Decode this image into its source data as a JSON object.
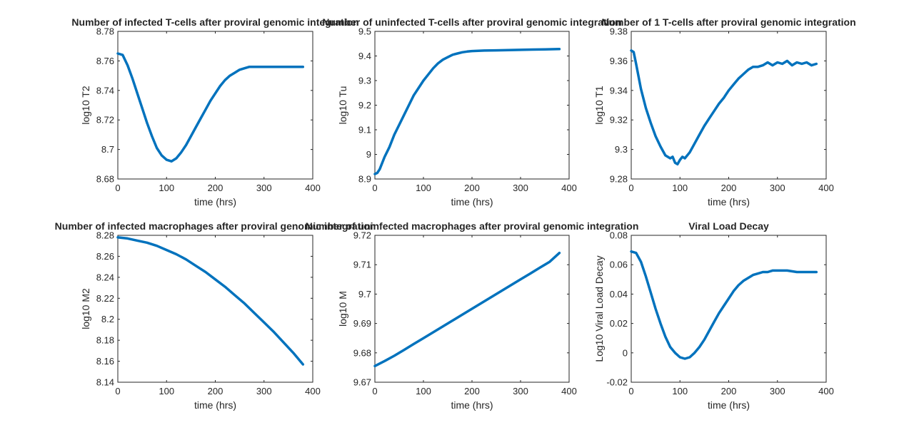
{
  "chart_data": [
    {
      "type": "line",
      "title": "Number of infected T-cells after proviral genomic integration",
      "xlabel": "time (hrs)",
      "ylabel": "log10 T2",
      "xlim": [
        0,
        400
      ],
      "ylim": [
        8.68,
        8.78
      ],
      "xticks": [
        0,
        100,
        200,
        300,
        400
      ],
      "yticks": [
        8.68,
        8.7,
        8.72,
        8.74,
        8.76,
        8.78
      ],
      "grid": false,
      "color": "#0072bd",
      "x": [
        0,
        10,
        20,
        30,
        40,
        50,
        60,
        70,
        80,
        90,
        100,
        110,
        120,
        130,
        140,
        150,
        160,
        170,
        180,
        190,
        200,
        210,
        220,
        230,
        240,
        250,
        260,
        270,
        280,
        290,
        300,
        320,
        340,
        360,
        380
      ],
      "y": [
        8.765,
        8.764,
        8.757,
        8.748,
        8.738,
        8.728,
        8.718,
        8.709,
        8.701,
        8.696,
        8.693,
        8.692,
        8.694,
        8.698,
        8.703,
        8.709,
        8.715,
        8.721,
        8.727,
        8.733,
        8.738,
        8.743,
        8.747,
        8.75,
        8.752,
        8.754,
        8.755,
        8.756,
        8.756,
        8.756,
        8.756,
        8.756,
        8.756,
        8.756,
        8.756
      ]
    },
    {
      "type": "line",
      "title": "Number of uninfected T-cells after proviral genomic integration",
      "xlabel": "time (hrs)",
      "ylabel": "log10 Tu",
      "xlim": [
        0,
        400
      ],
      "ylim": [
        8.9,
        9.5
      ],
      "xticks": [
        0,
        100,
        200,
        300,
        400
      ],
      "yticks": [
        8.9,
        9,
        9.1,
        9.2,
        9.3,
        9.4,
        9.5
      ],
      "grid": false,
      "color": "#0072bd",
      "x": [
        0,
        5,
        10,
        20,
        30,
        40,
        50,
        60,
        70,
        80,
        90,
        100,
        110,
        120,
        130,
        140,
        150,
        160,
        170,
        180,
        190,
        200,
        225,
        250,
        275,
        300,
        325,
        350,
        380
      ],
      "y": [
        8.92,
        8.925,
        8.94,
        8.99,
        9.03,
        9.08,
        9.12,
        9.16,
        9.2,
        9.24,
        9.27,
        9.3,
        9.325,
        9.35,
        9.37,
        9.385,
        9.395,
        9.405,
        9.41,
        9.415,
        9.418,
        9.42,
        9.422,
        9.423,
        9.424,
        9.425,
        9.426,
        9.427,
        9.428
      ]
    },
    {
      "type": "line",
      "title": "Number of 1 T-cells after proviral genomic integration",
      "xlabel": "time (hrs)",
      "ylabel": "log10 T1",
      "xlim": [
        0,
        400
      ],
      "ylim": [
        9.28,
        9.38
      ],
      "xticks": [
        0,
        100,
        200,
        300,
        400
      ],
      "yticks": [
        9.28,
        9.3,
        9.32,
        9.34,
        9.36,
        9.38
      ],
      "grid": false,
      "color": "#0072bd",
      "x": [
        0,
        5,
        10,
        20,
        30,
        40,
        50,
        60,
        70,
        80,
        85,
        90,
        95,
        100,
        105,
        110,
        120,
        130,
        140,
        150,
        160,
        170,
        180,
        190,
        200,
        210,
        220,
        230,
        240,
        250,
        260,
        270,
        280,
        290,
        300,
        310,
        320,
        330,
        340,
        350,
        360,
        370,
        380
      ],
      "y": [
        9.367,
        9.366,
        9.358,
        9.341,
        9.328,
        9.318,
        9.309,
        9.302,
        9.296,
        9.294,
        9.295,
        9.291,
        9.29,
        9.293,
        9.295,
        9.294,
        9.298,
        9.304,
        9.31,
        9.316,
        9.321,
        9.326,
        9.331,
        9.335,
        9.34,
        9.344,
        9.348,
        9.351,
        9.354,
        9.356,
        9.356,
        9.357,
        9.359,
        9.357,
        9.359,
        9.358,
        9.36,
        9.357,
        9.359,
        9.358,
        9.359,
        9.357,
        9.358
      ]
    },
    {
      "type": "line",
      "title": "Number of infected macrophages after proviral genomic integration",
      "xlabel": "time (hrs)",
      "ylabel": "log10 M2",
      "xlim": [
        0,
        400
      ],
      "ylim": [
        8.14,
        8.28
      ],
      "xticks": [
        0,
        100,
        200,
        300,
        400
      ],
      "yticks": [
        8.14,
        8.16,
        8.18,
        8.2,
        8.22,
        8.24,
        8.26,
        8.28
      ],
      "grid": false,
      "color": "#0072bd",
      "x": [
        0,
        20,
        40,
        60,
        80,
        100,
        120,
        140,
        160,
        180,
        200,
        220,
        240,
        260,
        280,
        300,
        320,
        340,
        360,
        380
      ],
      "y": [
        8.278,
        8.277,
        8.275,
        8.273,
        8.27,
        8.266,
        8.262,
        8.257,
        8.251,
        8.245,
        8.238,
        8.231,
        8.223,
        8.215,
        8.206,
        8.197,
        8.188,
        8.178,
        8.168,
        8.157
      ]
    },
    {
      "type": "line",
      "title": "Number of uninfected macrophages after proviral genomic integration",
      "xlabel": "time (hrs)",
      "ylabel": "log10 M",
      "xlim": [
        0,
        400
      ],
      "ylim": [
        9.67,
        9.72
      ],
      "xticks": [
        0,
        100,
        200,
        300,
        400
      ],
      "yticks": [
        9.67,
        9.68,
        9.69,
        9.7,
        9.71,
        9.72
      ],
      "grid": false,
      "color": "#0072bd",
      "x": [
        0,
        20,
        40,
        60,
        80,
        100,
        120,
        140,
        160,
        180,
        200,
        220,
        240,
        260,
        280,
        300,
        320,
        340,
        360,
        380
      ],
      "y": [
        9.6755,
        9.6772,
        9.679,
        9.681,
        9.683,
        9.685,
        9.687,
        9.689,
        9.691,
        9.693,
        9.695,
        9.697,
        9.699,
        9.701,
        9.703,
        9.705,
        9.707,
        9.709,
        9.711,
        9.714
      ]
    },
    {
      "type": "line",
      "title": "Viral Load Decay",
      "xlabel": "time (hrs)",
      "ylabel": "Log10 Viral Load Decay",
      "xlim": [
        0,
        400
      ],
      "ylim": [
        -0.02,
        0.08
      ],
      "xticks": [
        0,
        100,
        200,
        300,
        400
      ],
      "yticks": [
        -0.02,
        0,
        0.02,
        0.04,
        0.06,
        0.08
      ],
      "grid": false,
      "color": "#0072bd",
      "x": [
        0,
        10,
        20,
        30,
        40,
        50,
        60,
        70,
        80,
        90,
        100,
        110,
        120,
        130,
        140,
        150,
        160,
        170,
        180,
        190,
        200,
        210,
        220,
        230,
        240,
        250,
        260,
        270,
        280,
        290,
        300,
        320,
        340,
        360,
        380
      ],
      "y": [
        0.069,
        0.068,
        0.062,
        0.052,
        0.041,
        0.03,
        0.02,
        0.011,
        0.004,
        0.0,
        -0.003,
        -0.004,
        -0.003,
        0.0,
        0.004,
        0.009,
        0.015,
        0.021,
        0.027,
        0.032,
        0.037,
        0.042,
        0.046,
        0.049,
        0.051,
        0.053,
        0.054,
        0.055,
        0.055,
        0.056,
        0.056,
        0.056,
        0.055,
        0.055,
        0.055
      ]
    }
  ]
}
